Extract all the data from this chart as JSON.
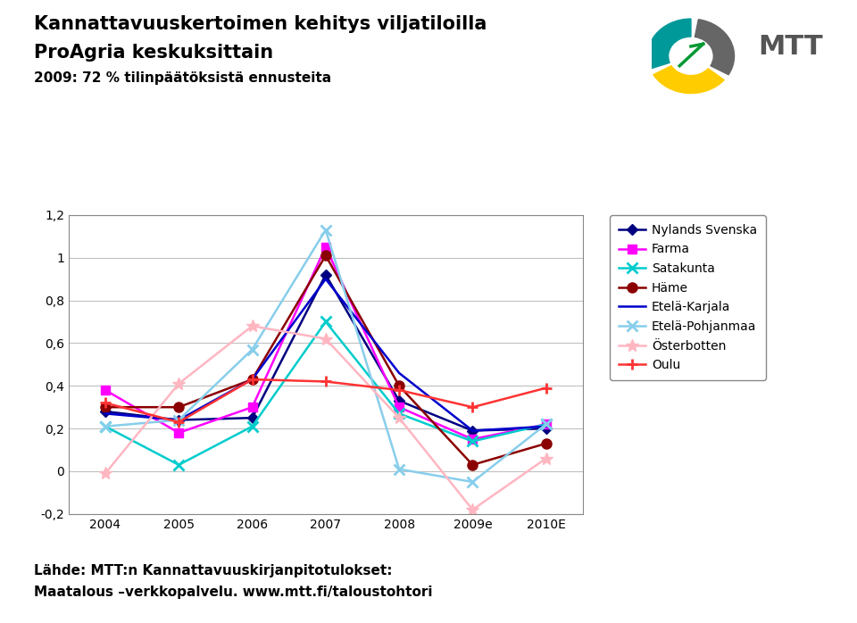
{
  "title_line1": "Kannattavuuskertoimen kehitys viljatiloilla",
  "title_line2": "ProAgria keskuksittain",
  "title_line3": "2009: 72 % tilinpäätöksistä ennusteita",
  "footer_line1": "Lähde: MTT:n Kannattavuuskirjanpitotulokset:",
  "footer_line2": "Maatalous –verkkopalvelu. www.mtt.fi/taloustohtori",
  "x_labels": [
    "2004",
    "2005",
    "2006",
    "2007",
    "2008",
    "2009e",
    "2010E"
  ],
  "x_values": [
    0,
    1,
    2,
    3,
    4,
    5,
    6
  ],
  "series": [
    {
      "name": "Nylands Svenska",
      "color": "#000080",
      "marker": "D",
      "markersize": 6,
      "values": [
        0.28,
        0.24,
        0.25,
        0.92,
        0.33,
        0.19,
        0.2
      ]
    },
    {
      "name": "Farma",
      "color": "#FF00FF",
      "marker": "s",
      "markersize": 7,
      "values": [
        0.38,
        0.18,
        0.3,
        1.05,
        0.3,
        0.15,
        0.22
      ]
    },
    {
      "name": "Satakunta",
      "color": "#00CCCC",
      "marker": "x",
      "markersize": 9,
      "markeredgewidth": 2,
      "values": [
        0.21,
        0.03,
        0.21,
        0.7,
        0.27,
        0.14,
        0.22
      ]
    },
    {
      "name": "Häme",
      "color": "#8B0000",
      "marker": "o",
      "markersize": 8,
      "values": [
        0.3,
        0.3,
        0.43,
        1.01,
        0.4,
        0.03,
        0.13
      ]
    },
    {
      "name": "Etelä-Karjala",
      "color": "#0000CC",
      "marker": "None",
      "markersize": 6,
      "values": [
        0.27,
        0.24,
        0.43,
        0.9,
        0.46,
        0.19,
        0.21
      ]
    },
    {
      "name": "Etelä-Pohjanmaa",
      "color": "#87CEEB",
      "marker": "x",
      "markersize": 9,
      "markeredgewidth": 2,
      "values": [
        0.21,
        0.24,
        0.57,
        1.13,
        0.01,
        -0.05,
        0.22
      ]
    },
    {
      "name": "Österbotten",
      "color": "#FFB6C1",
      "marker": "*",
      "markersize": 10,
      "values": [
        -0.01,
        0.41,
        0.68,
        0.62,
        0.25,
        -0.18,
        0.06
      ]
    },
    {
      "name": "Oulu",
      "color": "#FF3333",
      "marker": "+",
      "markersize": 9,
      "markeredgewidth": 2,
      "values": [
        0.32,
        0.23,
        0.43,
        0.42,
        0.38,
        0.3,
        0.39
      ]
    }
  ],
  "ylim": [
    -0.2,
    1.2
  ],
  "yticks": [
    -0.2,
    0,
    0.2,
    0.4,
    0.6,
    0.8,
    1.0,
    1.2
  ],
  "ytick_labels": [
    "-0,2",
    "0",
    "0,2",
    "0,4",
    "0,6",
    "0,8",
    "1",
    "1,2"
  ],
  "background_color": "#FFFFFF",
  "plot_bg_color": "#FFFFFF",
  "grid_color": "#C0C0C0",
  "linewidth": 1.8,
  "logo_colors": [
    "#009999",
    "#FFCC00",
    "#666666"
  ],
  "logo_angles": [
    90,
    210,
    330
  ],
  "mtt_text_color": "#555555"
}
